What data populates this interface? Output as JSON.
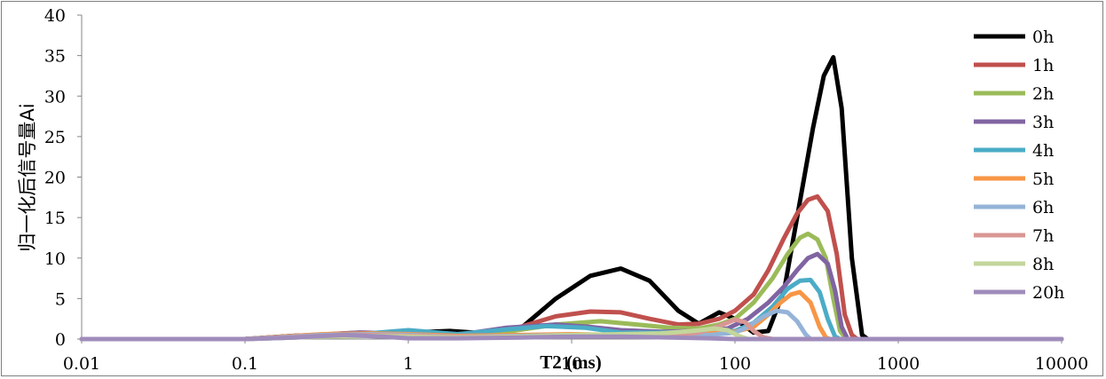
{
  "chart_data": {
    "type": "line",
    "xlabel": "T2 (ms)",
    "ylabel": "归一化后信号量Ai",
    "xscale": "log",
    "xlim": [
      0.01,
      10000
    ],
    "ylim": [
      0,
      40
    ],
    "x_ticks": [
      "0.01",
      "0.1",
      "1",
      "10",
      "100",
      "1000",
      "10000"
    ],
    "y_ticks": [
      "0",
      "5",
      "10",
      "15",
      "20",
      "25",
      "30",
      "35",
      "40"
    ],
    "grid": false,
    "legend": "right",
    "series": [
      {
        "name": "0h",
        "color": "#000000",
        "points": [
          [
            0.01,
            0
          ],
          [
            0.1,
            0
          ],
          [
            0.2,
            0.4
          ],
          [
            0.5,
            0.6
          ],
          [
            1,
            0.8
          ],
          [
            1.8,
            1.0
          ],
          [
            3,
            0.7
          ],
          [
            5,
            1.5
          ],
          [
            8,
            5.0
          ],
          [
            13,
            7.8
          ],
          [
            20,
            8.7
          ],
          [
            30,
            7.2
          ],
          [
            45,
            3.5
          ],
          [
            60,
            1.9
          ],
          [
            80,
            3.3
          ],
          [
            100,
            2.5
          ],
          [
            130,
            0.8
          ],
          [
            160,
            1.0
          ],
          [
            200,
            6.0
          ],
          [
            250,
            17
          ],
          [
            300,
            26
          ],
          [
            350,
            32.5
          ],
          [
            400,
            34.8
          ],
          [
            450,
            28.5
          ],
          [
            520,
            10
          ],
          [
            600,
            0.5
          ],
          [
            650,
            0
          ],
          [
            10000,
            0
          ]
        ]
      },
      {
        "name": "1h",
        "color": "#C0504D",
        "points": [
          [
            0.01,
            0
          ],
          [
            0.1,
            0
          ],
          [
            0.2,
            0.4
          ],
          [
            0.5,
            0.8
          ],
          [
            1,
            0.7
          ],
          [
            2,
            0.4
          ],
          [
            4,
            1.0
          ],
          [
            8,
            2.8
          ],
          [
            13,
            3.4
          ],
          [
            20,
            3.3
          ],
          [
            30,
            2.5
          ],
          [
            45,
            1.8
          ],
          [
            60,
            1.9
          ],
          [
            80,
            2.5
          ],
          [
            100,
            3.5
          ],
          [
            130,
            5.5
          ],
          [
            160,
            8.5
          ],
          [
            200,
            12.5
          ],
          [
            240,
            15.5
          ],
          [
            280,
            17.2
          ],
          [
            320,
            17.6
          ],
          [
            370,
            15.8
          ],
          [
            420,
            10.5
          ],
          [
            470,
            3.0
          ],
          [
            520,
            0.5
          ],
          [
            560,
            0
          ],
          [
            10000,
            0
          ]
        ]
      },
      {
        "name": "2h",
        "color": "#9BBB59",
        "points": [
          [
            0.01,
            0
          ],
          [
            0.1,
            0
          ],
          [
            0.2,
            0.3
          ],
          [
            0.5,
            0.6
          ],
          [
            1,
            0.6
          ],
          [
            2,
            0.4
          ],
          [
            4,
            0.9
          ],
          [
            8,
            1.8
          ],
          [
            15,
            2.2
          ],
          [
            25,
            1.8
          ],
          [
            40,
            1.4
          ],
          [
            60,
            1.3
          ],
          [
            80,
            1.8
          ],
          [
            100,
            2.5
          ],
          [
            130,
            4.5
          ],
          [
            170,
            7.5
          ],
          [
            210,
            10.5
          ],
          [
            250,
            12.5
          ],
          [
            280,
            13.0
          ],
          [
            320,
            12.3
          ],
          [
            360,
            10.0
          ],
          [
            400,
            5.0
          ],
          [
            440,
            1.0
          ],
          [
            480,
            0
          ],
          [
            10000,
            0
          ]
        ]
      },
      {
        "name": "3h",
        "color": "#8064A2",
        "points": [
          [
            0.01,
            0
          ],
          [
            0.1,
            0
          ],
          [
            0.2,
            0.3
          ],
          [
            0.5,
            0.8
          ],
          [
            1,
            0.7
          ],
          [
            2,
            0.5
          ],
          [
            4,
            1.4
          ],
          [
            8,
            1.8
          ],
          [
            13,
            1.5
          ],
          [
            20,
            1.1
          ],
          [
            35,
            0.9
          ],
          [
            60,
            1.0
          ],
          [
            90,
            1.3
          ],
          [
            120,
            2.5
          ],
          [
            160,
            4.5
          ],
          [
            200,
            6.5
          ],
          [
            240,
            8.5
          ],
          [
            280,
            10.0
          ],
          [
            320,
            10.5
          ],
          [
            370,
            9.3
          ],
          [
            410,
            6.0
          ],
          [
            450,
            1.5
          ],
          [
            490,
            0
          ],
          [
            10000,
            0
          ]
        ]
      },
      {
        "name": "4h",
        "color": "#4BACC6",
        "points": [
          [
            0.01,
            0
          ],
          [
            0.1,
            0
          ],
          [
            0.2,
            0.2
          ],
          [
            0.5,
            0.6
          ],
          [
            1,
            1.1
          ],
          [
            2,
            0.6
          ],
          [
            4,
            1.2
          ],
          [
            7,
            1.6
          ],
          [
            12,
            1.4
          ],
          [
            20,
            0.8
          ],
          [
            40,
            0.8
          ],
          [
            70,
            1.0
          ],
          [
            100,
            1.0
          ],
          [
            130,
            2.0
          ],
          [
            170,
            4.0
          ],
          [
            210,
            6.2
          ],
          [
            250,
            7.2
          ],
          [
            290,
            7.3
          ],
          [
            330,
            5.8
          ],
          [
            370,
            2.5
          ],
          [
            410,
            0.3
          ],
          [
            440,
            0
          ],
          [
            10000,
            0
          ]
        ]
      },
      {
        "name": "5h",
        "color": "#F79646",
        "points": [
          [
            0.01,
            0
          ],
          [
            0.1,
            0
          ],
          [
            0.3,
            0.6
          ],
          [
            0.6,
            0.7
          ],
          [
            1,
            0.6
          ],
          [
            2,
            0.4
          ],
          [
            5,
            0.5
          ],
          [
            10,
            0.6
          ],
          [
            20,
            0.5
          ],
          [
            40,
            0.5
          ],
          [
            70,
            0.7
          ],
          [
            100,
            0.9
          ],
          [
            130,
            1.5
          ],
          [
            160,
            3.0
          ],
          [
            190,
            4.5
          ],
          [
            220,
            5.5
          ],
          [
            250,
            5.8
          ],
          [
            290,
            4.5
          ],
          [
            330,
            1.5
          ],
          [
            360,
            0.2
          ],
          [
            380,
            0
          ],
          [
            10000,
            0
          ]
        ]
      },
      {
        "name": "6h",
        "color": "#95B3D7",
        "points": [
          [
            0.01,
            0
          ],
          [
            0.1,
            0
          ],
          [
            0.3,
            0.5
          ],
          [
            0.6,
            0.6
          ],
          [
            1,
            0.5
          ],
          [
            2,
            0.3
          ],
          [
            5,
            0.4
          ],
          [
            10,
            0.5
          ],
          [
            20,
            0.4
          ],
          [
            40,
            0.4
          ],
          [
            70,
            0.5
          ],
          [
            100,
            0.8
          ],
          [
            120,
            1.5
          ],
          [
            150,
            2.8
          ],
          [
            180,
            3.5
          ],
          [
            210,
            3.3
          ],
          [
            240,
            2.2
          ],
          [
            270,
            0.6
          ],
          [
            290,
            0
          ],
          [
            10000,
            0
          ]
        ]
      },
      {
        "name": "7h",
        "color": "#D99694",
        "points": [
          [
            0.01,
            0
          ],
          [
            0.1,
            0
          ],
          [
            0.3,
            0.4
          ],
          [
            0.6,
            0.5
          ],
          [
            1,
            0.4
          ],
          [
            2,
            0.3
          ],
          [
            5,
            0.3
          ],
          [
            10,
            0.4
          ],
          [
            20,
            0.4
          ],
          [
            40,
            0.5
          ],
          [
            60,
            0.8
          ],
          [
            80,
            1.6
          ],
          [
            100,
            2.4
          ],
          [
            115,
            2.1
          ],
          [
            130,
            1.0
          ],
          [
            150,
            0.2
          ],
          [
            170,
            0
          ],
          [
            10000,
            0
          ]
        ]
      },
      {
        "name": "8h",
        "color": "#C3D69B",
        "points": [
          [
            0.01,
            0
          ],
          [
            0.1,
            0
          ],
          [
            0.3,
            0.3
          ],
          [
            0.6,
            0.4
          ],
          [
            1,
            0.3
          ],
          [
            2,
            0.2
          ],
          [
            5,
            0.3
          ],
          [
            10,
            0.5
          ],
          [
            20,
            0.6
          ],
          [
            35,
            0.7
          ],
          [
            55,
            1.0
          ],
          [
            75,
            1.3
          ],
          [
            90,
            1.1
          ],
          [
            105,
            0.4
          ],
          [
            120,
            0
          ],
          [
            10000,
            0
          ]
        ]
      },
      {
        "name": "20h",
        "color": "#A08CBB",
        "points": [
          [
            0.01,
            0
          ],
          [
            0.1,
            0
          ],
          [
            0.2,
            0.2
          ],
          [
            0.4,
            0.5
          ],
          [
            0.7,
            0.3
          ],
          [
            1,
            0.1
          ],
          [
            2,
            0.1
          ],
          [
            5,
            0.2
          ],
          [
            10,
            0.3
          ],
          [
            20,
            0.3
          ],
          [
            40,
            0.2
          ],
          [
            70,
            0.1
          ],
          [
            100,
            0
          ],
          [
            10000,
            0
          ]
        ]
      }
    ]
  }
}
